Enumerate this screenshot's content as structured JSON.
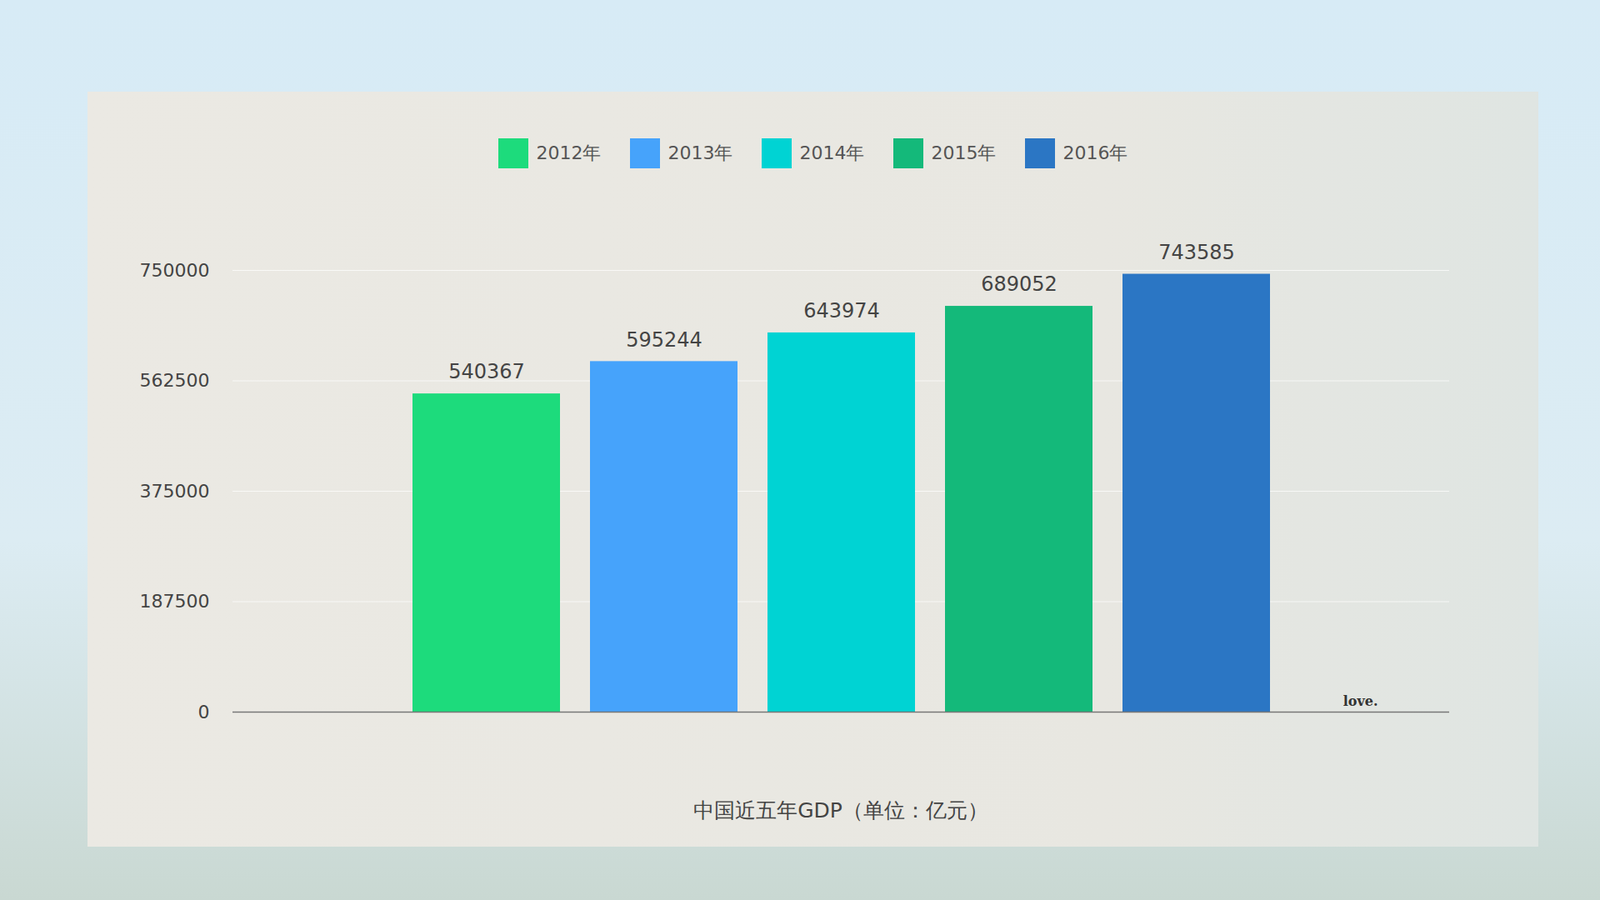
{
  "chart_data": {
    "type": "bar",
    "x_label": "中国近五年GDP（单位：亿元）",
    "categories": [
      "2012年",
      "2013年",
      "2014年",
      "2015年",
      "2016年"
    ],
    "values": [
      540367,
      595244,
      643974,
      689052,
      743585
    ],
    "colors": [
      "#1ddb7c",
      "#46a3fb",
      "#00d3d3",
      "#14b97a",
      "#2b76c4"
    ],
    "ylim": [
      0,
      750000
    ],
    "yticks": [
      0,
      187500,
      375000,
      562500,
      750000
    ],
    "grid": true,
    "legend": "top",
    "data_labels": true,
    "tick_labels": "y",
    "annotations": [
      "love."
    ]
  }
}
